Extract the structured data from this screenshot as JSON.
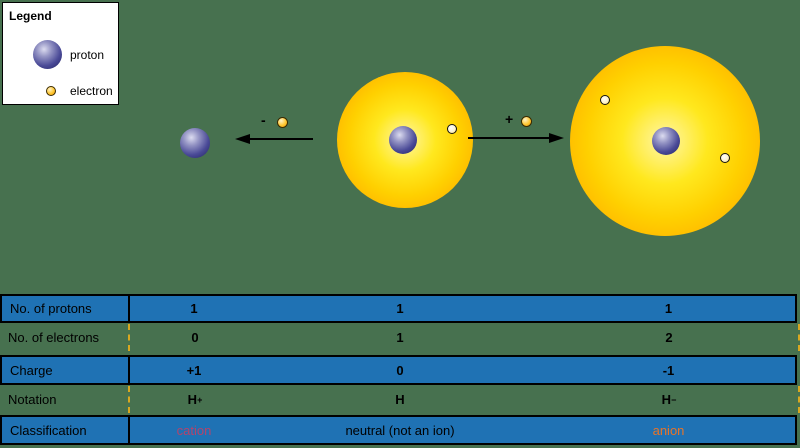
{
  "colors": {
    "background": "#47714f",
    "table_row_blue": "#1f72b4",
    "cation_text": "#b3446c",
    "neutral_text": "#000000",
    "anion_text": "#e87427",
    "proton_sphere": "#23236b",
    "electron_yellow": "#ffc832",
    "atom_cloud_orange": "#ffb300"
  },
  "legend": {
    "title": "Legend",
    "items": [
      {
        "icon": "proton-icon",
        "label": "proton"
      },
      {
        "icon": "electron-icon",
        "label": "electron"
      }
    ]
  },
  "arrows": {
    "remove_electron_sign": "-",
    "add_electron_sign": "+"
  },
  "table": {
    "labels": [
      "No. of protons",
      "No. of electrons",
      "Charge",
      "Notation",
      "Classification"
    ],
    "protons": [
      "1",
      "1",
      "1"
    ],
    "electrons": [
      "0",
      "1",
      "2"
    ],
    "charge": [
      "+1",
      "0",
      "-1"
    ],
    "notation": [
      {
        "base": "H",
        "sup": "+"
      },
      {
        "base": "H",
        "sup": ""
      },
      {
        "base": "H",
        "sup": "−"
      }
    ],
    "classification": [
      "cation",
      "neutral (not an ion)",
      "anion"
    ]
  }
}
